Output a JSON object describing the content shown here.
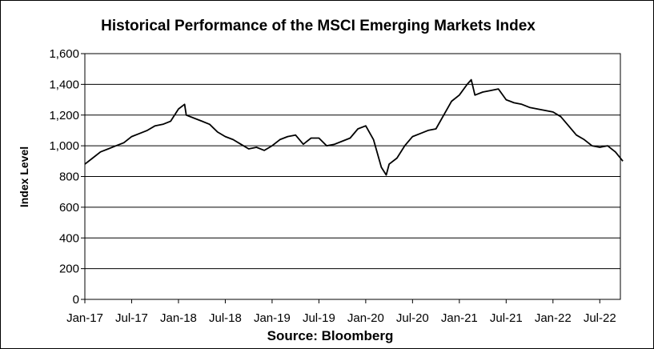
{
  "chart_data": {
    "type": "line",
    "title": "Historical Performance of the MSCI Emerging Markets Index",
    "ylabel": "Index Level",
    "xlabel": "Source: Bloomberg",
    "ylim": [
      0,
      1600
    ],
    "yticks": [
      0,
      200,
      400,
      600,
      800,
      1000,
      1200,
      1400,
      1600
    ],
    "ytick_labels": [
      "0",
      "200",
      "400",
      "600",
      "800",
      "1,000",
      "1,200",
      "1,400",
      "1,600"
    ],
    "xlim": [
      "2017-01",
      "2022-10"
    ],
    "xtick_labels": [
      "Jan-17",
      "Jul-17",
      "Jan-18",
      "Jul-18",
      "Jan-19",
      "Jul-19",
      "Jan-20",
      "Jul-20",
      "Jan-21",
      "Jul-21",
      "Jan-22",
      "Jul-22"
    ],
    "grid": "horizontal",
    "series": [
      {
        "color": "#000000",
        "x": [
          "2017-01",
          "2017-02",
          "2017-03",
          "2017-04",
          "2017-05",
          "2017-06",
          "2017-07",
          "2017-08",
          "2017-09",
          "2017-10",
          "2017-11",
          "2017-12",
          "2018-01",
          "2018-01-25",
          "2018-02",
          "2018-03",
          "2018-04",
          "2018-05",
          "2018-06",
          "2018-07",
          "2018-08",
          "2018-09",
          "2018-10",
          "2018-11",
          "2018-12",
          "2019-01",
          "2019-02",
          "2019-03",
          "2019-04",
          "2019-05",
          "2019-06",
          "2019-07",
          "2019-08",
          "2019-09",
          "2019-10",
          "2019-11",
          "2019-12",
          "2020-01",
          "2020-02",
          "2020-03",
          "2020-03-20",
          "2020-04",
          "2020-05",
          "2020-06",
          "2020-07",
          "2020-08",
          "2020-09",
          "2020-10",
          "2020-11",
          "2020-12",
          "2021-01",
          "2021-02",
          "2021-02-17",
          "2021-03",
          "2021-04",
          "2021-05",
          "2021-06",
          "2021-07",
          "2021-08",
          "2021-09",
          "2021-10",
          "2021-11",
          "2021-12",
          "2022-01",
          "2022-02",
          "2022-03",
          "2022-04",
          "2022-05",
          "2022-06",
          "2022-07",
          "2022-08",
          "2022-09",
          "2022-09-30"
        ],
        "values": [
          880,
          920,
          960,
          980,
          1000,
          1020,
          1060,
          1080,
          1100,
          1130,
          1140,
          1160,
          1240,
          1270,
          1200,
          1180,
          1160,
          1140,
          1090,
          1060,
          1040,
          1010,
          980,
          990,
          970,
          1000,
          1040,
          1060,
          1070,
          1010,
          1050,
          1050,
          1000,
          1010,
          1030,
          1050,
          1110,
          1130,
          1040,
          860,
          810,
          880,
          920,
          1000,
          1060,
          1080,
          1100,
          1110,
          1200,
          1290,
          1330,
          1400,
          1430,
          1330,
          1350,
          1360,
          1370,
          1300,
          1280,
          1270,
          1250,
          1240,
          1230,
          1220,
          1190,
          1130,
          1070,
          1040,
          1000,
          990,
          1000,
          960,
          900
        ]
      }
    ]
  },
  "source_text": "Source: Bloomberg"
}
